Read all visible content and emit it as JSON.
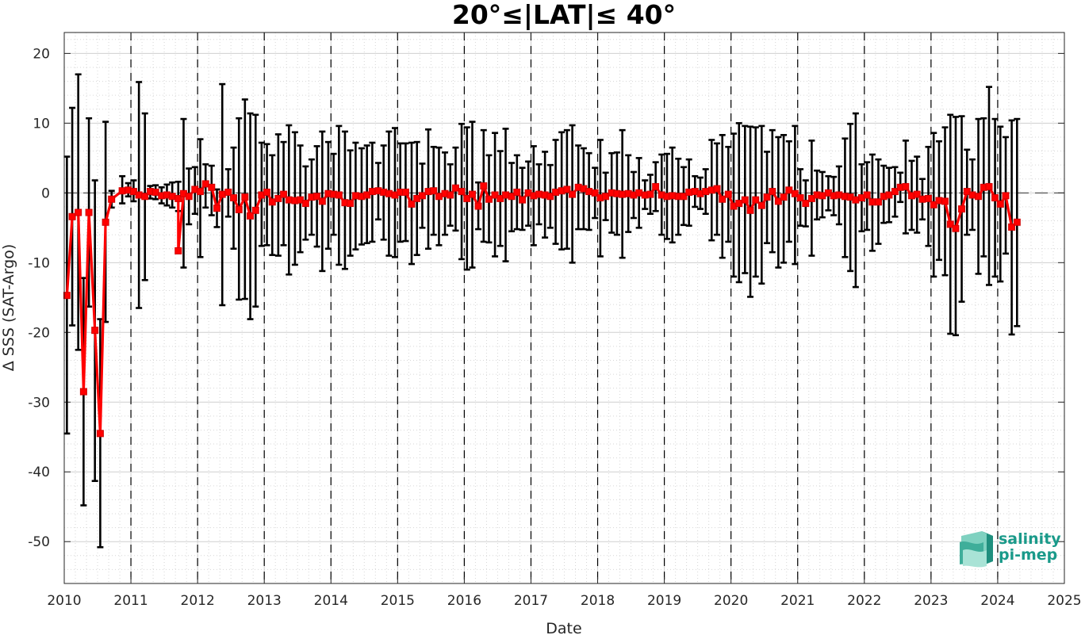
{
  "chart_data": {
    "type": "line",
    "title": "20°≤|LAT|≤ 40°",
    "xlabel": "Date",
    "ylabel": "Δ SSS (SAT-Argo)",
    "xlim": [
      2010,
      2025
    ],
    "ylim": [
      -56,
      23
    ],
    "x_ticks": [
      "2010",
      "2011",
      "2012",
      "2013",
      "2014",
      "2015",
      "2016",
      "2017",
      "2018",
      "2019",
      "2020",
      "2021",
      "2022",
      "2023",
      "2024",
      "2025"
    ],
    "y_ticks": [
      "20",
      "10",
      "0",
      "-10",
      "-20",
      "-30",
      "-40",
      "-50"
    ],
    "grid": true,
    "minor_grid": true,
    "zero_line": true,
    "year_lines": true,
    "colors": {
      "mean": "#ff0000",
      "errorbar": "#000000",
      "grid": "#cccccc"
    },
    "series": [
      {
        "values": [
          [
            2010.04,
            -14.7,
            -34.5,
            5.2
          ],
          [
            2010.12,
            -3.4,
            -19.0,
            12.2
          ],
          [
            2010.21,
            -2.8,
            -22.5,
            17.0
          ],
          [
            2010.29,
            -28.5,
            -44.8,
            -12.2
          ],
          [
            2010.37,
            -2.8,
            -16.3,
            10.7
          ],
          [
            2010.46,
            -19.7,
            -41.3,
            1.8
          ],
          [
            2010.54,
            -34.5,
            -50.8,
            -18.1
          ],
          [
            2010.62,
            -4.2,
            -18.5,
            10.2
          ],
          [
            2010.71,
            -0.9,
            -2.1,
            0.3
          ],
          [
            2010.87,
            0.3,
            -1.5,
            2.4
          ],
          [
            2010.96,
            0.4,
            -0.5,
            1.4
          ],
          [
            2011.04,
            0.2,
            -1.2,
            1.8
          ],
          [
            2011.12,
            -0.3,
            -16.5,
            15.9
          ],
          [
            2011.21,
            -0.5,
            -12.5,
            11.4
          ],
          [
            2011.29,
            0.2,
            -0.8,
            1.0
          ],
          [
            2011.37,
            0.1,
            -0.9,
            1.1
          ],
          [
            2011.46,
            -0.4,
            -1.5,
            0.8
          ],
          [
            2011.54,
            -0.3,
            -1.8,
            1.2
          ],
          [
            2011.62,
            -0.5,
            -2.1,
            1.5
          ],
          [
            2011.71,
            -0.8,
            -2.6,
            1.6
          ],
          [
            2011.71,
            -8.3,
            -8.3,
            -8.3
          ],
          [
            2011.79,
            -0.1,
            -10.7,
            10.6
          ],
          [
            2011.87,
            -0.5,
            -4.5,
            3.5
          ],
          [
            2011.96,
            0.5,
            -3.0,
            3.7
          ],
          [
            2012.04,
            0.2,
            -9.2,
            7.7
          ],
          [
            2012.12,
            1.3,
            -2.1,
            4.1
          ],
          [
            2012.21,
            0.8,
            -3.2,
            3.9
          ],
          [
            2012.29,
            -2.2,
            -4.9,
            0.5
          ],
          [
            2012.37,
            -0.2,
            -16.1,
            15.6
          ],
          [
            2012.46,
            0.1,
            -3.4,
            3.4
          ],
          [
            2012.54,
            -0.7,
            -8.0,
            6.5
          ],
          [
            2012.62,
            -2.4,
            -15.3,
            10.7
          ],
          [
            2012.71,
            -0.6,
            -15.2,
            13.4
          ],
          [
            2012.79,
            -3.3,
            -18.1,
            11.4
          ],
          [
            2012.87,
            -2.5,
            -16.3,
            11.2
          ],
          [
            2012.96,
            -0.3,
            -7.6,
            7.2
          ],
          [
            2013.04,
            0.1,
            -7.5,
            7.0
          ],
          [
            2013.12,
            -1.3,
            -8.9,
            5.4
          ],
          [
            2013.21,
            -0.8,
            -9.0,
            8.4
          ],
          [
            2013.29,
            -0.2,
            -7.5,
            7.3
          ],
          [
            2013.37,
            -1.0,
            -11.7,
            9.7
          ],
          [
            2013.46,
            -1.1,
            -10.3,
            8.7
          ],
          [
            2013.54,
            -1.0,
            -8.5,
            6.8
          ],
          [
            2013.62,
            -1.5,
            -6.7,
            3.8
          ],
          [
            2013.71,
            -0.6,
            -6.0,
            4.8
          ],
          [
            2013.79,
            -0.5,
            -7.7,
            6.7
          ],
          [
            2013.87,
            -1.2,
            -11.2,
            8.8
          ],
          [
            2013.96,
            -0.1,
            -8.0,
            7.3
          ],
          [
            2014.04,
            -0.2,
            -6.0,
            5.6
          ],
          [
            2014.12,
            -0.3,
            -10.3,
            9.6
          ],
          [
            2014.21,
            -1.4,
            -10.9,
            8.8
          ],
          [
            2014.29,
            -1.5,
            -9.0,
            6.1
          ],
          [
            2014.37,
            -0.4,
            -8.1,
            7.2
          ],
          [
            2014.46,
            -0.5,
            -7.4,
            6.4
          ],
          [
            2014.54,
            -0.3,
            -7.2,
            6.8
          ],
          [
            2014.62,
            0.2,
            -7.0,
            7.2
          ],
          [
            2014.71,
            0.3,
            -3.8,
            4.3
          ],
          [
            2014.79,
            0.1,
            -6.7,
            6.8
          ],
          [
            2014.87,
            -0.1,
            -9.0,
            8.8
          ],
          [
            2014.96,
            -0.3,
            -9.2,
            9.3
          ],
          [
            2015.04,
            0.1,
            -7.0,
            7.1
          ],
          [
            2015.12,
            0.1,
            -6.9,
            7.1
          ],
          [
            2015.21,
            -1.6,
            -10.2,
            7.2
          ],
          [
            2015.29,
            -0.8,
            -8.9,
            7.3
          ],
          [
            2015.37,
            -0.4,
            -5.0,
            4.2
          ],
          [
            2015.46,
            0.2,
            -8.0,
            9.1
          ],
          [
            2015.54,
            0.3,
            -6.0,
            6.6
          ],
          [
            2015.62,
            -0.5,
            -7.5,
            6.5
          ],
          [
            2015.71,
            -0.1,
            -6.0,
            5.8
          ],
          [
            2015.79,
            -0.3,
            -4.7,
            4.1
          ],
          [
            2015.87,
            0.7,
            -5.4,
            6.5
          ],
          [
            2015.96,
            0.2,
            -9.5,
            9.9
          ],
          [
            2016.04,
            -0.8,
            -11.0,
            9.4
          ],
          [
            2016.12,
            -0.2,
            -10.7,
            10.2
          ],
          [
            2016.21,
            -1.9,
            -5.2,
            1.5
          ],
          [
            2016.29,
            1.0,
            -7.0,
            9.0
          ],
          [
            2016.37,
            -0.9,
            -7.1,
            5.4
          ],
          [
            2016.46,
            -0.3,
            -9.1,
            8.6
          ],
          [
            2016.54,
            -0.8,
            -7.6,
            6.0
          ],
          [
            2016.62,
            -0.3,
            -9.8,
            9.2
          ],
          [
            2016.71,
            -0.5,
            -5.5,
            4.3
          ],
          [
            2016.79,
            0.1,
            -5.2,
            5.4
          ],
          [
            2016.87,
            -1.0,
            -5.3,
            3.6
          ],
          [
            2016.96,
            0.0,
            -4.7,
            4.5
          ],
          [
            2017.04,
            -0.4,
            -7.5,
            6.7
          ],
          [
            2017.12,
            -0.2,
            -4.5,
            4.1
          ],
          [
            2017.21,
            -0.3,
            -6.4,
            5.9
          ],
          [
            2017.29,
            -0.5,
            -5.0,
            4.0
          ],
          [
            2017.37,
            0.1,
            -7.3,
            7.6
          ],
          [
            2017.46,
            0.3,
            -8.1,
            8.7
          ],
          [
            2017.54,
            0.5,
            -8.0,
            9.0
          ],
          [
            2017.62,
            -0.2,
            -10.0,
            9.7
          ],
          [
            2017.71,
            0.8,
            -5.2,
            6.8
          ],
          [
            2017.79,
            0.6,
            -5.2,
            6.4
          ],
          [
            2017.87,
            0.2,
            -5.3,
            5.7
          ],
          [
            2017.96,
            0.0,
            -3.6,
            3.6
          ],
          [
            2018.04,
            -0.7,
            -9.1,
            7.6
          ],
          [
            2018.12,
            -0.5,
            -3.9,
            2.9
          ],
          [
            2018.21,
            0.0,
            -5.7,
            5.7
          ],
          [
            2018.29,
            -0.1,
            -6.0,
            5.8
          ],
          [
            2018.37,
            -0.2,
            -9.3,
            9.0
          ],
          [
            2018.46,
            -0.1,
            -5.6,
            5.4
          ],
          [
            2018.54,
            -0.3,
            -3.6,
            3.0
          ],
          [
            2018.62,
            0.0,
            -5.0,
            5.0
          ],
          [
            2018.71,
            -0.3,
            -2.3,
            1.8
          ],
          [
            2018.79,
            -0.2,
            -3.0,
            2.6
          ],
          [
            2018.87,
            0.9,
            -2.6,
            4.4
          ],
          [
            2018.96,
            -0.3,
            -6.0,
            5.5
          ],
          [
            2019.04,
            -0.5,
            -6.6,
            5.6
          ],
          [
            2019.12,
            -0.4,
            -7.1,
            6.5
          ],
          [
            2019.21,
            -0.5,
            -6.0,
            4.9
          ],
          [
            2019.29,
            -0.5,
            -4.6,
            3.7
          ],
          [
            2019.37,
            0.1,
            -4.7,
            4.8
          ],
          [
            2019.46,
            0.2,
            -2.0,
            2.4
          ],
          [
            2019.54,
            -0.1,
            -2.3,
            2.2
          ],
          [
            2019.62,
            0.2,
            -3.0,
            3.4
          ],
          [
            2019.71,
            0.4,
            -6.8,
            7.6
          ],
          [
            2019.79,
            0.6,
            -6.0,
            7.1
          ],
          [
            2019.87,
            -0.9,
            -9.3,
            8.3
          ],
          [
            2019.96,
            -0.2,
            -7.0,
            6.6
          ],
          [
            2020.04,
            -1.9,
            -12.0,
            8.5
          ],
          [
            2020.12,
            -1.5,
            -12.8,
            10.0
          ],
          [
            2020.21,
            -1.0,
            -11.5,
            9.6
          ],
          [
            2020.29,
            -2.5,
            -14.9,
            9.5
          ],
          [
            2020.37,
            -1.0,
            -12.0,
            9.4
          ],
          [
            2020.46,
            -1.8,
            -13.0,
            9.6
          ],
          [
            2020.54,
            -0.6,
            -7.2,
            5.9
          ],
          [
            2020.62,
            0.2,
            -8.5,
            9.0
          ],
          [
            2020.71,
            -1.2,
            -10.7,
            8.0
          ],
          [
            2020.79,
            -0.6,
            -10.0,
            8.3
          ],
          [
            2020.87,
            0.4,
            -7.0,
            7.4
          ],
          [
            2020.96,
            -0.1,
            -10.2,
            9.6
          ],
          [
            2021.04,
            -0.7,
            -4.7,
            3.4
          ],
          [
            2021.12,
            -1.5,
            -4.8,
            1.8
          ],
          [
            2021.21,
            -0.8,
            -9.0,
            7.5
          ],
          [
            2021.29,
            -0.3,
            -3.8,
            3.2
          ],
          [
            2021.37,
            -0.4,
            -3.5,
            3.0
          ],
          [
            2021.46,
            0.0,
            -2.5,
            2.4
          ],
          [
            2021.54,
            -0.4,
            -3.2,
            2.3
          ],
          [
            2021.62,
            -0.3,
            -4.5,
            3.8
          ],
          [
            2021.71,
            -0.5,
            -9.2,
            7.8
          ],
          [
            2021.79,
            -0.6,
            -11.2,
            9.9
          ],
          [
            2021.87,
            -1.0,
            -13.5,
            11.4
          ],
          [
            2021.96,
            -0.7,
            -5.5,
            4.1
          ],
          [
            2022.04,
            -0.3,
            -5.3,
            4.4
          ],
          [
            2022.12,
            -1.3,
            -8.3,
            5.5
          ],
          [
            2022.21,
            -1.3,
            -7.3,
            4.8
          ],
          [
            2022.29,
            -0.5,
            -4.3,
            3.9
          ],
          [
            2022.37,
            -0.3,
            -4.2,
            3.6
          ],
          [
            2022.46,
            0.2,
            -3.4,
            3.7
          ],
          [
            2022.54,
            0.8,
            -1.3,
            2.9
          ],
          [
            2022.62,
            0.9,
            -5.8,
            7.5
          ],
          [
            2022.71,
            -0.4,
            -5.3,
            4.6
          ],
          [
            2022.79,
            -0.2,
            -5.7,
            5.2
          ],
          [
            2022.87,
            -0.9,
            -3.8,
            2.0
          ],
          [
            2022.96,
            -0.8,
            -7.6,
            6.6
          ],
          [
            2023.04,
            -1.7,
            -12.0,
            8.6
          ],
          [
            2023.12,
            -1.1,
            -9.6,
            7.4
          ],
          [
            2023.21,
            -1.2,
            -11.8,
            9.4
          ],
          [
            2023.29,
            -4.5,
            -20.2,
            11.2
          ],
          [
            2023.37,
            -5.1,
            -20.4,
            10.9
          ],
          [
            2023.46,
            -2.3,
            -15.6,
            11.0
          ],
          [
            2023.54,
            0.2,
            -6.0,
            6.2
          ],
          [
            2023.62,
            -0.3,
            -5.3,
            4.8
          ],
          [
            2023.71,
            -0.5,
            -11.6,
            10.6
          ],
          [
            2023.79,
            0.8,
            -9.1,
            10.7
          ],
          [
            2023.87,
            0.9,
            -13.2,
            15.2
          ],
          [
            2023.96,
            -0.7,
            -12.0,
            10.6
          ],
          [
            2024.04,
            -1.6,
            -12.7,
            9.5
          ],
          [
            2024.12,
            -0.4,
            -8.7,
            8.0
          ],
          [
            2024.21,
            -4.9,
            -20.3,
            10.4
          ],
          [
            2024.29,
            -4.2,
            -19.1,
            10.6
          ]
        ]
      }
    ]
  },
  "logo": {
    "line1": "salinity",
    "line2": "pi-mep"
  }
}
